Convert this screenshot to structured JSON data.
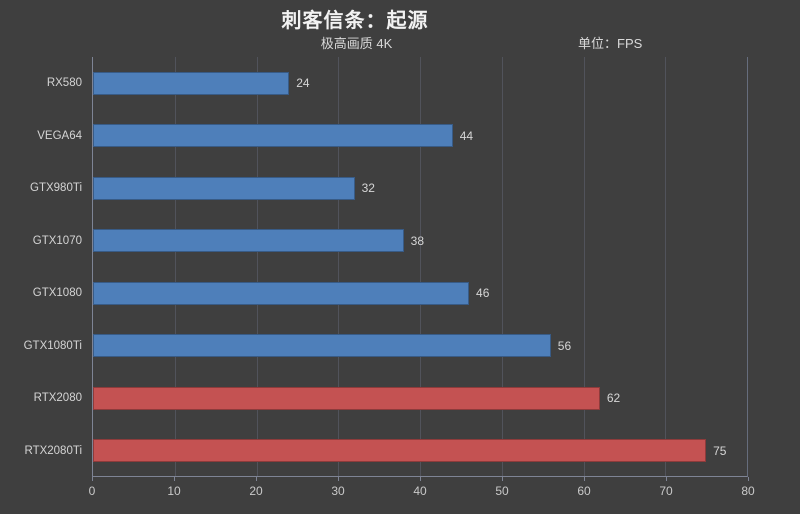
{
  "colors": {
    "background": "#3f3f3f",
    "bar_blue": "#4e7fba",
    "bar_red": "#c45252",
    "gridline": "#51535b",
    "axis_frame": "#7e8495",
    "title_text": "#f2f2f2",
    "label_text": "#d4d4d4",
    "tick_text": "#c9c9c9"
  },
  "chart_data": {
    "type": "bar",
    "orientation": "horizontal",
    "title": "刺客信条：起源",
    "subtitle": "极高画质 4K",
    "unit_label": "单位：FPS",
    "xlabel": "",
    "ylabel": "",
    "categories": [
      "RX580",
      "VEGA64",
      "GTX980Ti",
      "GTX1070",
      "GTX1080",
      "GTX1080Ti",
      "RTX2080",
      "RTX2080Ti"
    ],
    "values": [
      24,
      44,
      32,
      38,
      46,
      56,
      62,
      75
    ],
    "bar_colors": [
      "#4e7fba",
      "#4e7fba",
      "#4e7fba",
      "#4e7fba",
      "#4e7fba",
      "#4e7fba",
      "#c45252",
      "#c45252"
    ],
    "xlim": [
      0,
      80
    ],
    "xticks": [
      0,
      10,
      20,
      30,
      40,
      50,
      60,
      70,
      80
    ],
    "grid": true,
    "legend": false,
    "value_labels_shown": true
  }
}
